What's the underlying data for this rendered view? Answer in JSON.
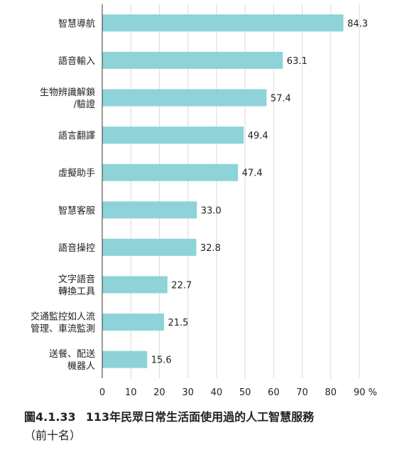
{
  "chart_data": {
    "type": "bar",
    "orientation": "horizontal",
    "categories": [
      [
        "智慧導航"
      ],
      [
        "語音輸入"
      ],
      [
        "生物辨識解鎖",
        "/驗證"
      ],
      [
        "語言翻譯"
      ],
      [
        "虛擬助手"
      ],
      [
        "智慧客服"
      ],
      [
        "語音操控"
      ],
      [
        "文字語音",
        "轉換工具"
      ],
      [
        "交通監控如人流",
        "管理、車流監測"
      ],
      [
        "送餐、配送",
        "機器人"
      ]
    ],
    "values": [
      84.3,
      63.1,
      57.4,
      49.4,
      47.4,
      33.0,
      32.8,
      22.7,
      21.5,
      15.6
    ],
    "value_labels": [
      "84.3",
      "63.1",
      "57.4",
      "49.4",
      "47.4",
      "33.0",
      "32.8",
      "22.7",
      "21.5",
      "15.6"
    ],
    "xlim": [
      0,
      90
    ],
    "xticks": [
      0,
      10,
      20,
      30,
      40,
      50,
      60,
      70,
      80,
      90
    ],
    "x_unit": "%",
    "grid": true,
    "bar_color": "#8dd3d8",
    "grid_color": "#d9d9d9"
  },
  "caption": {
    "number": "圖4.1.33",
    "title": "113年民眾日常生活面使用過的人工智慧服務",
    "subtitle": "（前十名）"
  }
}
